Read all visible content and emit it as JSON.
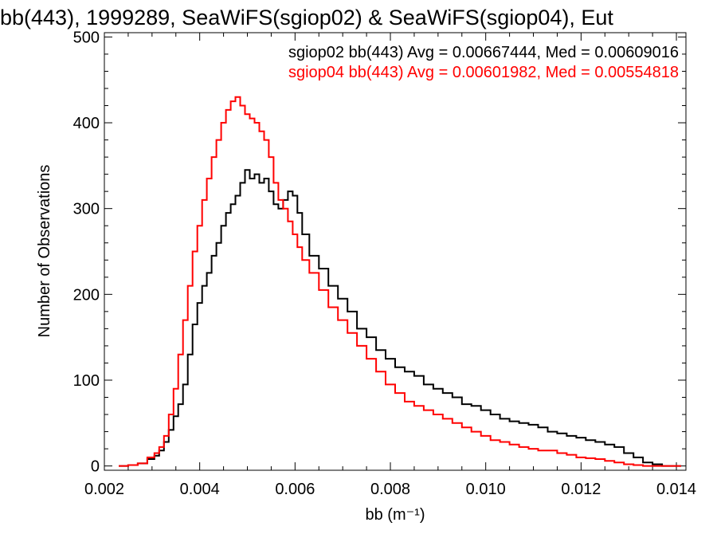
{
  "chart_data": {
    "type": "line",
    "title": "bb(443), 1999289, SeaWiFS(sgiop02) & SeaWiFS(sgiop04), Eut",
    "xlabel": "bb (m⁻¹)",
    "ylabel": "Number of Observations",
    "xlim": [
      0.002,
      0.0142
    ],
    "ylim": [
      -5,
      505
    ],
    "xticks": [
      "0.002",
      "0.004",
      "0.006",
      "0.008",
      "0.010",
      "0.012",
      "0.014"
    ],
    "yticks": [
      "0",
      "100",
      "200",
      "300",
      "400",
      "500"
    ],
    "xtick_values": [
      0.002,
      0.004,
      0.006,
      0.008,
      0.01,
      0.012,
      0.014
    ],
    "ytick_values": [
      0,
      100,
      200,
      300,
      400,
      500
    ],
    "grid": false,
    "legend_position": "top-right",
    "x": [
      0.0024,
      0.0026,
      0.0028,
      0.003,
      0.0031,
      0.0032,
      0.0033,
      0.0034,
      0.0035,
      0.0036,
      0.0037,
      0.0038,
      0.0039,
      0.004,
      0.0041,
      0.0042,
      0.0043,
      0.0044,
      0.0045,
      0.0046,
      0.0047,
      0.0048,
      0.0049,
      0.005,
      0.0051,
      0.0052,
      0.0053,
      0.0054,
      0.0055,
      0.0056,
      0.0057,
      0.0058,
      0.0059,
      0.006,
      0.0061,
      0.0062,
      0.0064,
      0.0066,
      0.0068,
      0.007,
      0.0072,
      0.0074,
      0.0076,
      0.0078,
      0.008,
      0.0082,
      0.0084,
      0.0086,
      0.0088,
      0.009,
      0.0092,
      0.0094,
      0.0096,
      0.0098,
      0.01,
      0.0102,
      0.0104,
      0.0106,
      0.0108,
      0.011,
      0.0112,
      0.0114,
      0.0116,
      0.0118,
      0.012,
      0.0122,
      0.0124,
      0.0126,
      0.0128,
      0.013,
      0.0132,
      0.0134,
      0.0136,
      0.0138,
      0.014
    ],
    "series": [
      {
        "name": "sgiop02",
        "color": "#000000",
        "label": "sgiop02 bb(443) Avg = 0.00667444, Med = 0.00609016",
        "values": [
          0,
          1,
          3,
          8,
          12,
          18,
          28,
          42,
          58,
          72,
          95,
          130,
          165,
          190,
          210,
          225,
          245,
          260,
          280,
          295,
          305,
          315,
          330,
          345,
          335,
          340,
          330,
          335,
          320,
          305,
          300,
          310,
          320,
          315,
          295,
          270,
          245,
          230,
          210,
          195,
          180,
          160,
          150,
          135,
          125,
          115,
          110,
          105,
          95,
          90,
          85,
          80,
          72,
          70,
          65,
          60,
          55,
          52,
          50,
          48,
          45,
          40,
          38,
          35,
          33,
          30,
          28,
          25,
          22,
          15,
          10,
          4,
          2,
          0,
          0
        ]
      },
      {
        "name": "sgiop04",
        "color": "#ff0000",
        "label": "sgiop04 bb(443) Avg = 0.00601982, Med = 0.00554818",
        "values": [
          0,
          1,
          3,
          10,
          15,
          22,
          35,
          60,
          90,
          130,
          170,
          210,
          250,
          280,
          310,
          335,
          360,
          380,
          400,
          415,
          425,
          430,
          420,
          410,
          405,
          400,
          390,
          380,
          360,
          330,
          310,
          300,
          285,
          270,
          255,
          240,
          225,
          205,
          185,
          170,
          155,
          140,
          125,
          110,
          95,
          85,
          75,
          70,
          65,
          60,
          55,
          50,
          45,
          40,
          35,
          30,
          28,
          25,
          22,
          20,
          18,
          18,
          15,
          13,
          10,
          9,
          8,
          6,
          4,
          2,
          1,
          0,
          0,
          0,
          0
        ]
      }
    ]
  }
}
